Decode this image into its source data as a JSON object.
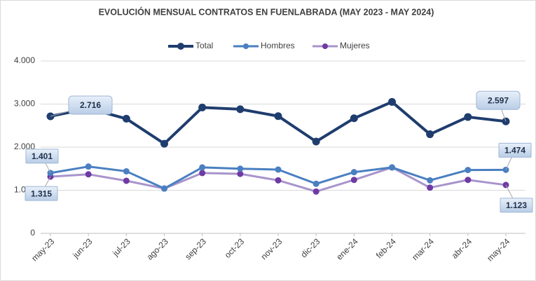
{
  "chart_data": {
    "type": "line",
    "title": "EVOLUCIÓN MENSUAL CONTRATOS EN FUENLABRADA (MAY 2023 - MAY 2024)",
    "categories": [
      "may-23",
      "jun-23",
      "jul-23",
      "ago-23",
      "sep-23",
      "oct-23",
      "nov-23",
      "dic-23",
      "ene-24",
      "feb-24",
      "mar-24",
      "abr-24",
      "may-24"
    ],
    "series": [
      {
        "name": "Total",
        "color": "#1f3d6e",
        "marker_color": "#1f3d6e",
        "values": [
          2716,
          2900,
          2660,
          2080,
          2920,
          2880,
          2720,
          2130,
          2670,
          3050,
          2300,
          2700,
          2597
        ],
        "value_labels": [
          "2.716",
          null,
          null,
          null,
          null,
          null,
          null,
          null,
          null,
          null,
          null,
          null,
          "2.597"
        ]
      },
      {
        "name": "Hombres",
        "color": "#4a7fc1",
        "marker_color": "#4a7fc1",
        "values": [
          1401,
          1550,
          1440,
          1040,
          1530,
          1500,
          1480,
          1150,
          1420,
          1530,
          1230,
          1470,
          1474
        ],
        "value_labels": [
          "1.401",
          null,
          null,
          null,
          null,
          null,
          null,
          null,
          null,
          null,
          null,
          null,
          "1.474"
        ]
      },
      {
        "name": "Mujeres",
        "color": "#a894cc",
        "marker_color": "#6f3aa3",
        "values": [
          1315,
          1370,
          1220,
          1040,
          1400,
          1380,
          1230,
          970,
          1240,
          1530,
          1060,
          1240,
          1123
        ],
        "value_labels": [
          "1.315",
          null,
          null,
          null,
          null,
          null,
          null,
          null,
          null,
          null,
          null,
          null,
          "1.123"
        ]
      }
    ],
    "ylim": [
      0,
      4000
    ],
    "yticks": [
      0,
      {
        "value": 1000,
        "label": "1.000"
      },
      {
        "value": 2000,
        "label": "2.000"
      },
      {
        "value": 3000,
        "label": "3.000"
      },
      {
        "value": 4000,
        "label": "4.000"
      }
    ],
    "grid": true,
    "legend": "top"
  }
}
